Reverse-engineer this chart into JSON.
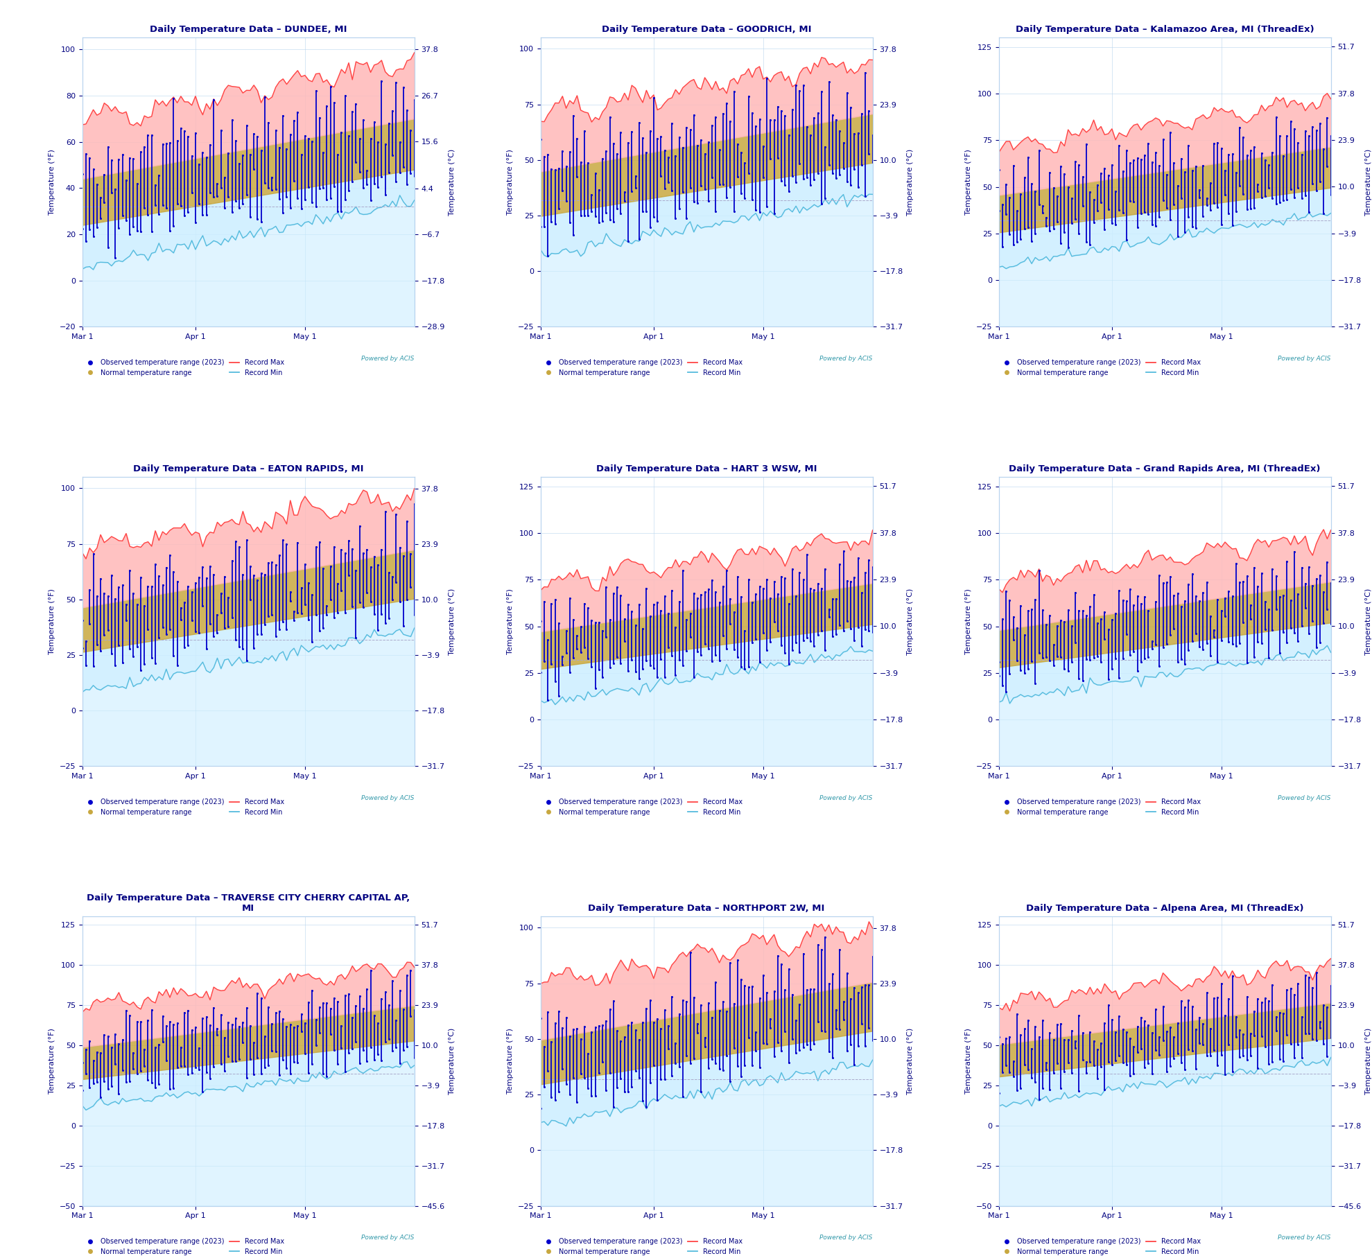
{
  "stations": [
    {
      "title": "Daily Temperature Data – DUNDEE, MI",
      "ylim": [
        -20,
        105
      ],
      "ylim2": [
        -28.9,
        40.6
      ],
      "yticks_left": [
        -20,
        0,
        20,
        40,
        60,
        80,
        100
      ],
      "yticks_right": [
        -28.9,
        -17.8,
        -6.7,
        4.4,
        15.6,
        26.7,
        37.8
      ]
    },
    {
      "title": "Daily Temperature Data – GOODRICH, MI",
      "ylim": [
        -25,
        105
      ],
      "ylim2": [
        -31.7,
        40.6
      ],
      "yticks_left": [
        -25,
        0,
        25,
        50,
        75,
        100
      ],
      "yticks_right": [
        -31.7,
        -17.8,
        -3.9,
        10,
        23.9,
        37.8
      ]
    },
    {
      "title": "Daily Temperature Data – Kalamazoo Area, MI (ThreadEx)",
      "ylim": [
        -25,
        130
      ],
      "ylim2": [
        -31.7,
        54.4
      ],
      "yticks_left": [
        -25,
        0,
        25,
        50,
        75,
        100,
        125
      ],
      "yticks_right": [
        -31.7,
        -17.8,
        -3.9,
        10,
        23.9,
        37.8,
        51.7
      ]
    },
    {
      "title": "Daily Temperature Data – EATON RAPIDS, MI",
      "ylim": [
        -25,
        105
      ],
      "ylim2": [
        -31.7,
        40.6
      ],
      "yticks_left": [
        -25,
        0,
        25,
        50,
        75,
        100
      ],
      "yticks_right": [
        -31.7,
        -17.8,
        -3.9,
        10,
        23.9,
        37.8
      ]
    },
    {
      "title": "Daily Temperature Data – HART 3 WSW, MI",
      "ylim": [
        -25,
        130
      ],
      "ylim2": [
        -31.7,
        54.4
      ],
      "yticks_left": [
        -25,
        0,
        25,
        50,
        75,
        100,
        125
      ],
      "yticks_right": [
        -31.7,
        -17.8,
        -3.9,
        10,
        23.9,
        37.8,
        51.7
      ]
    },
    {
      "title": "Daily Temperature Data – Grand Rapids Area, MI (ThreadEx)",
      "ylim": [
        -25,
        130
      ],
      "ylim2": [
        -31.7,
        54.4
      ],
      "yticks_left": [
        -25,
        0,
        25,
        50,
        75,
        100,
        125
      ],
      "yticks_right": [
        -31.7,
        -17.8,
        -3.9,
        10,
        23.9,
        37.8,
        51.7
      ]
    },
    {
      "title": "Daily Temperature Data – TRAVERSE CITY CHERRY CAPITAL AP,\nMI",
      "ylim": [
        -50,
        130
      ],
      "ylim2": [
        -45.6,
        54.4
      ],
      "yticks_left": [
        -50,
        -25,
        0,
        25,
        50,
        75,
        100,
        125
      ],
      "yticks_right": [
        -45.6,
        -31.7,
        -17.8,
        -3.9,
        10,
        23.9,
        37.8,
        51.7
      ]
    },
    {
      "title": "Daily Temperature Data – NORTHPORT 2W, MI",
      "ylim": [
        -25,
        105
      ],
      "ylim2": [
        -31.7,
        40.6
      ],
      "yticks_left": [
        -25,
        0,
        25,
        50,
        75,
        100
      ],
      "yticks_right": [
        -31.7,
        -17.8,
        -3.9,
        10,
        23.9,
        37.8
      ]
    },
    {
      "title": "Daily Temperature Data – Alpena Area, MI (ThreadEx)",
      "ylim": [
        -50,
        130
      ],
      "ylim2": [
        -45.6,
        54.4
      ],
      "yticks_left": [
        -50,
        -25,
        0,
        25,
        50,
        75,
        100,
        125
      ],
      "yticks_right": [
        -45.6,
        -31.7,
        -17.8,
        -3.9,
        10,
        23.9,
        37.8,
        51.7
      ]
    }
  ],
  "n_days": 92,
  "colors": {
    "record_max_fill": "#ffb8b8",
    "record_max_line": "#ff4444",
    "normal_fill": "#c8a840",
    "record_min_fill": "#cceeff",
    "record_min_line": "#55bbdd",
    "obs_bar": "#0000cc",
    "title_color": "#000080",
    "axis_label_color": "#000080",
    "tick_color": "#000080",
    "grid_color": "#b8d4ee",
    "dashed_line": "#aaaacc"
  },
  "background": "white",
  "figsize": [
    19.79,
    18.12
  ],
  "dpi": 100,
  "month_ticks": [
    0,
    31,
    61
  ],
  "month_labels": [
    "Mar 1",
    "Apr 1",
    "May 1"
  ]
}
